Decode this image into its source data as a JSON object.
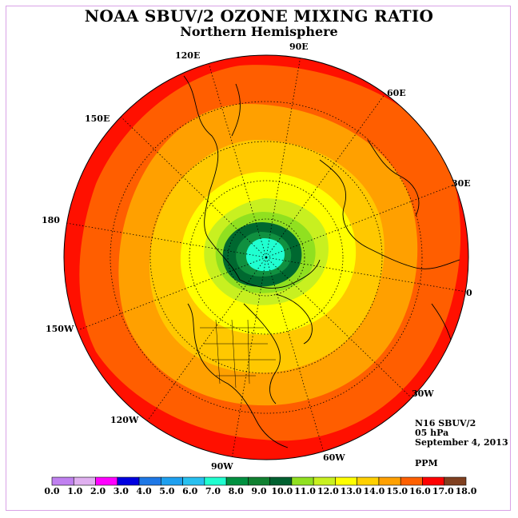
{
  "title": "NOAA SBUV/2 OZONE MIXING RATIO",
  "subtitle": "Northern Hemisphere",
  "info": {
    "instrument": "N16 SBUV/2",
    "level": "05 hPa",
    "date": "September 4, 2013",
    "units": "PPM"
  },
  "longitude_labels": [
    "90E",
    "60E",
    "30E",
    "0",
    "30W",
    "60W",
    "90W",
    "120W",
    "150W",
    "180",
    "150E",
    "120E"
  ],
  "colorbar": {
    "labels": [
      "0.0",
      "1.0",
      "2.0",
      "3.0",
      "4.0",
      "5.0",
      "6.0",
      "7.0",
      "8.0",
      "9.0",
      "10.0",
      "11.0",
      "12.0",
      "13.0",
      "14.0",
      "15.0",
      "16.0",
      "17.0",
      "18.0"
    ],
    "colors": [
      "#c080f0",
      "#e0b0f0",
      "#ff00ff",
      "#0000e0",
      "#1e78e6",
      "#1ea0f0",
      "#28c0f0",
      "#20ffd0",
      "#009040",
      "#108030",
      "#006030",
      "#90e020",
      "#c8f020",
      "#ffff00",
      "#ffd000",
      "#ffa000",
      "#ff6000",
      "#ff0000",
      "#804020"
    ]
  }
}
